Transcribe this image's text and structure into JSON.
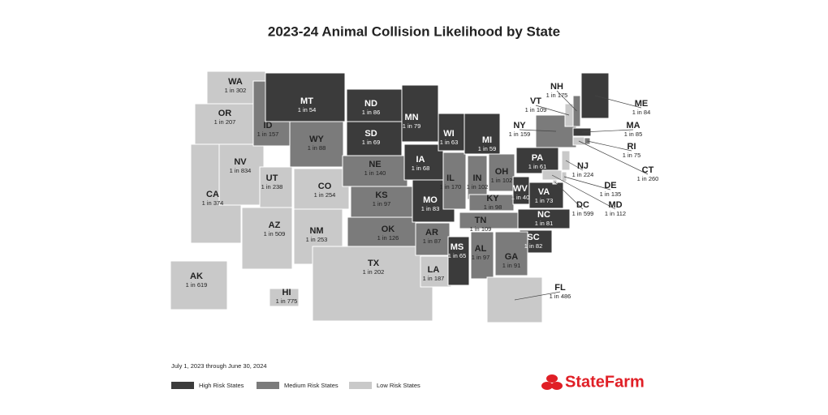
{
  "title": "2023-24 Animal Collision Likelihood by State",
  "date_note": "July 1, 2023 through June 30, 2024",
  "legend": [
    {
      "label": "High Risk States",
      "color": "#3b3b3b"
    },
    {
      "label": "Medium Risk States",
      "color": "#7b7b7b"
    },
    {
      "label": "Low Risk States",
      "color": "#c9c9c9"
    }
  ],
  "logo": "StateFarm",
  "states": [
    {
      "abbr": "WA",
      "odds": "1 in 302",
      "risk": 2
    },
    {
      "abbr": "OR",
      "odds": "1 in 207",
      "risk": 2
    },
    {
      "abbr": "CA",
      "odds": "1 in 374",
      "risk": 2
    },
    {
      "abbr": "NV",
      "odds": "1 in 834",
      "risk": 2
    },
    {
      "abbr": "ID",
      "odds": "1 in 157",
      "risk": 1
    },
    {
      "abbr": "MT",
      "odds": "1 in 54",
      "risk": 0
    },
    {
      "abbr": "WY",
      "odds": "1 in 88",
      "risk": 1
    },
    {
      "abbr": "UT",
      "odds": "1 in 238",
      "risk": 2
    },
    {
      "abbr": "CO",
      "odds": "1 in 254",
      "risk": 2
    },
    {
      "abbr": "AZ",
      "odds": "1 in 509",
      "risk": 2
    },
    {
      "abbr": "NM",
      "odds": "1 in 253",
      "risk": 2
    },
    {
      "abbr": "ND",
      "odds": "1 in 86",
      "risk": 0
    },
    {
      "abbr": "SD",
      "odds": "1 in 69",
      "risk": 0
    },
    {
      "abbr": "NE",
      "odds": "1 in 140",
      "risk": 1
    },
    {
      "abbr": "KS",
      "odds": "1 in 97",
      "risk": 1
    },
    {
      "abbr": "OK",
      "odds": "1 in 126",
      "risk": 1
    },
    {
      "abbr": "TX",
      "odds": "1 in 202",
      "risk": 2
    },
    {
      "abbr": "MN",
      "odds": "1 in 79",
      "risk": 0
    },
    {
      "abbr": "IA",
      "odds": "1 in 68",
      "risk": 0
    },
    {
      "abbr": "MO",
      "odds": "1 in 83",
      "risk": 0
    },
    {
      "abbr": "AR",
      "odds": "1 in 87",
      "risk": 1
    },
    {
      "abbr": "LA",
      "odds": "1 in 187",
      "risk": 2
    },
    {
      "abbr": "WI",
      "odds": "1 in 63",
      "risk": 0
    },
    {
      "abbr": "IL",
      "odds": "1 in 170",
      "risk": 1
    },
    {
      "abbr": "MS",
      "odds": "1 in 65",
      "risk": 0
    },
    {
      "abbr": "MI",
      "odds": "1 in 59",
      "risk": 0
    },
    {
      "abbr": "IN",
      "odds": "1 in 102",
      "risk": 1
    },
    {
      "abbr": "KY",
      "odds": "1 in 98",
      "risk": 1
    },
    {
      "abbr": "TN",
      "odds": "1 in 109",
      "risk": 1
    },
    {
      "abbr": "AL",
      "odds": "1 in 97",
      "risk": 1
    },
    {
      "abbr": "OH",
      "odds": "1 in 102",
      "risk": 1
    },
    {
      "abbr": "WV",
      "odds": "1 in 40",
      "risk": 0
    },
    {
      "abbr": "VA",
      "odds": "1 in 73",
      "risk": 0
    },
    {
      "abbr": "NC",
      "odds": "1 in 81",
      "risk": 0
    },
    {
      "abbr": "SC",
      "odds": "1 in 82",
      "risk": 0
    },
    {
      "abbr": "GA",
      "odds": "1 in 91",
      "risk": 1
    },
    {
      "abbr": "FL",
      "odds": "1 in 486",
      "risk": 2
    },
    {
      "abbr": "PA",
      "odds": "1 in 61",
      "risk": 0
    },
    {
      "abbr": "NY",
      "odds": "1 in 159",
      "risk": 1
    },
    {
      "abbr": "VT",
      "odds": "1 in 109",
      "risk": 2
    },
    {
      "abbr": "NH",
      "odds": "1 in 175",
      "risk": 1
    },
    {
      "abbr": "ME",
      "odds": "1 in 84",
      "risk": 0
    },
    {
      "abbr": "MA",
      "odds": "1 in 85",
      "risk": 0
    },
    {
      "abbr": "RI",
      "odds": "1 in 75",
      "risk": 1
    },
    {
      "abbr": "CT",
      "odds": "1 in 260",
      "risk": 2
    },
    {
      "abbr": "NJ",
      "odds": "1 in 224",
      "risk": 2
    },
    {
      "abbr": "DE",
      "odds": "1 in 135",
      "risk": 2
    },
    {
      "abbr": "MD",
      "odds": "1 in 112",
      "risk": 2
    },
    {
      "abbr": "DC",
      "odds": "1 in 599",
      "risk": 2
    },
    {
      "abbr": "AK",
      "odds": "1 in 619",
      "risk": 2
    },
    {
      "abbr": "HI",
      "odds": "1 in 775",
      "risk": 2
    }
  ]
}
